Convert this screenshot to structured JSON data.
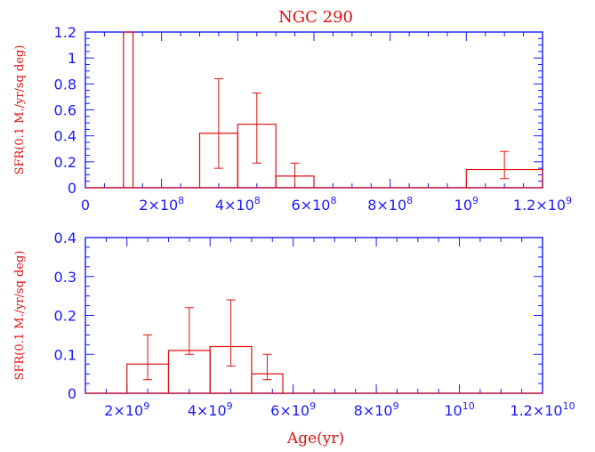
{
  "colors": {
    "axis": "#1a1aff",
    "data": "#e01010"
  },
  "title": "NGC 290",
  "xlabel": "Age(yr)",
  "chart_data": [
    {
      "type": "bar",
      "ylabel": "SFR(0.1 M./yr/sq deg)",
      "xlim": [
        0,
        1200000000
      ],
      "ylim": [
        0,
        1.2
      ],
      "xticks": [
        {
          "v": 0,
          "m": "0",
          "e": ""
        },
        {
          "v": 200000000,
          "m": "2×10",
          "e": "8"
        },
        {
          "v": 400000000,
          "m": "4×10",
          "e": "8"
        },
        {
          "v": 600000000,
          "m": "6×10",
          "e": "8"
        },
        {
          "v": 800000000,
          "m": "8×10",
          "e": "8"
        },
        {
          "v": 1000000000,
          "m": "10",
          "e": "9"
        },
        {
          "v": 1200000000,
          "m": "1.2×10",
          "e": "9"
        }
      ],
      "yticks": [
        {
          "v": 0,
          "t": "0"
        },
        {
          "v": 0.2,
          "t": "0.2"
        },
        {
          "v": 0.4,
          "t": "0.4"
        },
        {
          "v": 0.6,
          "t": "0.6"
        },
        {
          "v": 0.8,
          "t": "0.8"
        },
        {
          "v": 1,
          "t": "1"
        },
        {
          "v": 1.2,
          "t": "1.2"
        }
      ],
      "bins": [
        {
          "x0": 100000000,
          "x1": 125000000,
          "y": 1.2
        },
        {
          "x0": 300000000,
          "x1": 400000000,
          "y": 0.42,
          "err": [
            0.15,
            0.84
          ]
        },
        {
          "x0": 400000000,
          "x1": 500000000,
          "y": 0.49,
          "err": [
            0.19,
            0.73
          ]
        },
        {
          "x0": 500000000,
          "x1": 600000000,
          "y": 0.09,
          "err": [
            0.0,
            0.19
          ]
        },
        {
          "x0": 1000000000,
          "x1": 1200000000,
          "y": 0.14,
          "err": [
            0.07,
            0.28
          ]
        }
      ]
    },
    {
      "type": "bar",
      "ylabel": "SFR(0.1 M./yr/sq deg)",
      "xlim": [
        1000000000,
        12000000000
      ],
      "ylim": [
        0,
        0.4
      ],
      "xticks": [
        {
          "v": 2000000000,
          "m": "2×10",
          "e": "9"
        },
        {
          "v": 4000000000,
          "m": "4×10",
          "e": "9"
        },
        {
          "v": 6000000000,
          "m": "6×10",
          "e": "9"
        },
        {
          "v": 8000000000,
          "m": "8×10",
          "e": "9"
        },
        {
          "v": 10000000000,
          "m": "10",
          "e": "10"
        },
        {
          "v": 12000000000,
          "m": "1.2×10",
          "e": "10"
        }
      ],
      "yticks": [
        {
          "v": 0,
          "t": "0"
        },
        {
          "v": 0.1,
          "t": "0.1"
        },
        {
          "v": 0.2,
          "t": "0.2"
        },
        {
          "v": 0.3,
          "t": "0.3"
        },
        {
          "v": 0.4,
          "t": "0.4"
        }
      ],
      "bins": [
        {
          "x0": 2000000000,
          "x1": 3000000000,
          "y": 0.075,
          "err": [
            0.035,
            0.15
          ]
        },
        {
          "x0": 3000000000,
          "x1": 4000000000,
          "y": 0.11,
          "err": [
            0.1,
            0.22
          ]
        },
        {
          "x0": 4000000000,
          "x1": 5000000000,
          "y": 0.12,
          "err": [
            0.07,
            0.24
          ]
        },
        {
          "x0": 5000000000,
          "x1": 5750000000,
          "y": 0.05,
          "err": [
            0.035,
            0.1
          ]
        }
      ]
    }
  ]
}
